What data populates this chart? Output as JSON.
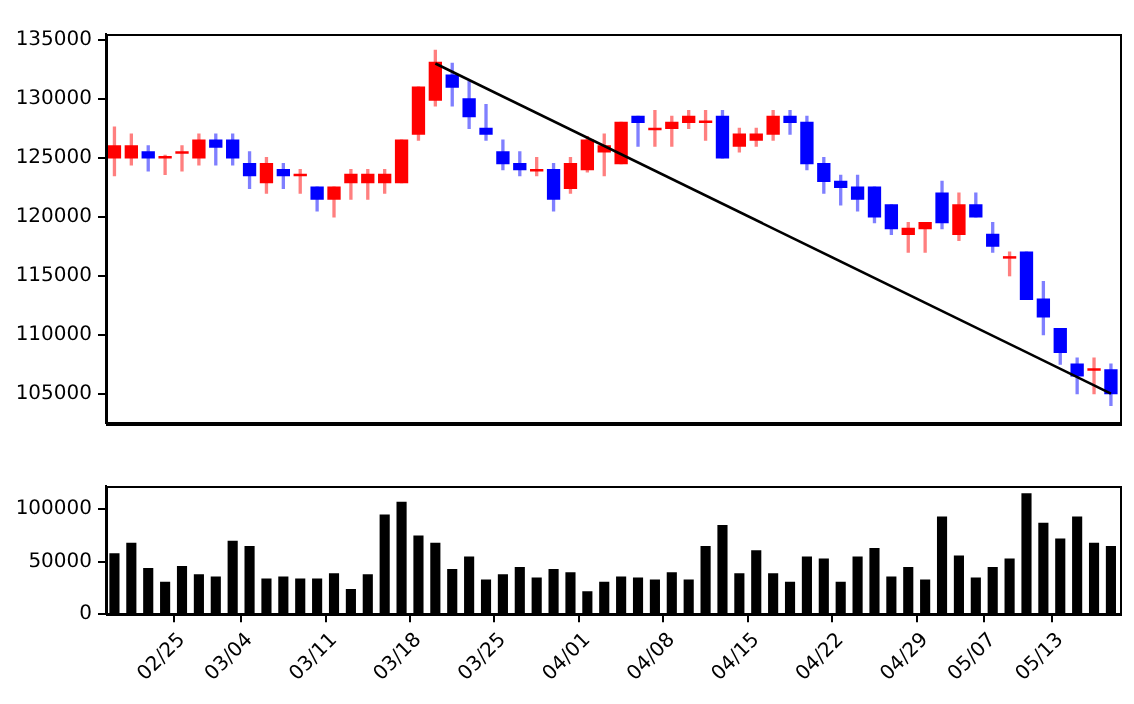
{
  "chart_data": [
    {
      "type": "candlestick",
      "categories": [
        null,
        null,
        null,
        null,
        null,
        null,
        null,
        null,
        null,
        null,
        null,
        null,
        null,
        null,
        null,
        null,
        null,
        null,
        null,
        null,
        null,
        null,
        null,
        null,
        null,
        null,
        null,
        null,
        null,
        null,
        null,
        null,
        null,
        null,
        null,
        null,
        null,
        null,
        null,
        null,
        null,
        null,
        null,
        null,
        null,
        null,
        null,
        null,
        null,
        null,
        null,
        null,
        null,
        null,
        null,
        null,
        null,
        null,
        null,
        null
      ],
      "ohlc": [
        [
          125000,
          127600,
          123500,
          126000
        ],
        [
          125000,
          127000,
          124400,
          126000
        ],
        [
          125500,
          126000,
          123900,
          125000
        ],
        [
          125000,
          125200,
          123600,
          125100
        ],
        [
          125400,
          126000,
          123900,
          125500
        ],
        [
          125000,
          127000,
          124400,
          126500
        ],
        [
          126500,
          127000,
          124400,
          125900
        ],
        [
          126500,
          127000,
          124400,
          125000
        ],
        [
          124500,
          125500,
          122400,
          123500
        ],
        [
          122900,
          125000,
          122000,
          124500
        ],
        [
          124000,
          124500,
          122400,
          123500
        ],
        [
          123500,
          124000,
          122000,
          123600
        ],
        [
          122500,
          122500,
          120500,
          121500
        ],
        [
          121500,
          122500,
          120000,
          122500
        ],
        [
          122900,
          124000,
          121500,
          123600
        ],
        [
          122900,
          124000,
          121500,
          123600
        ],
        [
          122900,
          124000,
          122000,
          123600
        ],
        [
          122900,
          126500,
          122900,
          126500
        ],
        [
          127000,
          131000,
          126500,
          131000
        ],
        [
          129900,
          134100,
          129400,
          133100
        ],
        [
          132000,
          133000,
          129400,
          131000
        ],
        [
          130000,
          131500,
          127500,
          128500
        ],
        [
          127500,
          129500,
          126500,
          127000
        ],
        [
          125500,
          126500,
          124000,
          124500
        ],
        [
          124500,
          125500,
          123500,
          124000
        ],
        [
          123900,
          125000,
          123500,
          124000
        ],
        [
          124000,
          124500,
          120500,
          121500
        ],
        [
          122400,
          125000,
          122000,
          124500
        ],
        [
          124000,
          126800,
          123800,
          126500
        ],
        [
          125500,
          127000,
          123500,
          126000
        ],
        [
          124500,
          128000,
          124500,
          128000
        ],
        [
          128500,
          128500,
          126000,
          128000
        ],
        [
          127400,
          129000,
          126000,
          127500
        ],
        [
          127500,
          128500,
          126000,
          128000
        ],
        [
          128000,
          129000,
          127500,
          128500
        ],
        [
          128000,
          129000,
          126500,
          128100
        ],
        [
          128500,
          129000,
          125000,
          125000
        ],
        [
          126000,
          127500,
          125500,
          127000
        ],
        [
          126500,
          127500,
          126000,
          127000
        ],
        [
          127000,
          129000,
          126500,
          128500
        ],
        [
          128500,
          129000,
          127000,
          128000
        ],
        [
          128000,
          128500,
          124000,
          124500
        ],
        [
          124500,
          125000,
          122000,
          123000
        ],
        [
          123000,
          123500,
          121000,
          122500
        ],
        [
          122500,
          123500,
          120500,
          121500
        ],
        [
          122500,
          122500,
          119500,
          120000
        ],
        [
          121000,
          121000,
          118500,
          119000
        ],
        [
          118500,
          119500,
          117000,
          119000
        ],
        [
          119000,
          119500,
          117000,
          119500
        ],
        [
          122000,
          123000,
          119000,
          119500
        ],
        [
          118500,
          122000,
          118000,
          121000
        ],
        [
          121000,
          122000,
          120000,
          120000
        ],
        [
          118500,
          119500,
          117000,
          117500
        ],
        [
          116500,
          117000,
          115000,
          116600
        ],
        [
          117000,
          117000,
          113000,
          113000
        ],
        [
          113000,
          114500,
          110000,
          111500
        ],
        [
          110500,
          110500,
          107500,
          108500
        ],
        [
          107500,
          108000,
          105000,
          106500
        ],
        [
          107000,
          108000,
          105000,
          107100
        ],
        [
          107000,
          107500,
          104000,
          105000
        ]
      ],
      "colors": [
        "#ff0000",
        "#ff0000",
        "#0000ff",
        "#ff0000",
        "#ff0000",
        "#ff0000",
        "#0000ff",
        "#0000ff",
        "#0000ff",
        "#ff0000",
        "#0000ff",
        "#ff0000",
        "#0000ff",
        "#ff0000",
        "#ff0000",
        "#ff0000",
        "#ff0000",
        "#ff0000",
        "#ff0000",
        "#ff0000",
        "#0000ff",
        "#0000ff",
        "#0000ff",
        "#0000ff",
        "#0000ff",
        "#ff0000",
        "#0000ff",
        "#ff0000",
        "#ff0000",
        "#ff0000",
        "#ff0000",
        "#0000ff",
        "#ff0000",
        "#ff0000",
        "#ff0000",
        "#ff0000",
        "#0000ff",
        "#ff0000",
        "#ff0000",
        "#ff0000",
        "#0000ff",
        "#0000ff",
        "#0000ff",
        "#0000ff",
        "#0000ff",
        "#0000ff",
        "#0000ff",
        "#ff0000",
        "#ff0000",
        "#0000ff",
        "#ff0000",
        "#0000ff",
        "#0000ff",
        "#ff0000",
        "#0000ff",
        "#0000ff",
        "#0000ff",
        "#0000ff",
        "#ff0000",
        "#0000ff"
      ],
      "series": [
        {
          "type": "line",
          "color": "#000000",
          "values": [
            null,
            null,
            null,
            null,
            null,
            null,
            null,
            null,
            null,
            null,
            null,
            null,
            null,
            null,
            null,
            null,
            null,
            null,
            null,
            133000,
            null,
            null,
            null,
            null,
            null,
            null,
            null,
            null,
            null,
            null,
            null,
            null,
            null,
            null,
            null,
            null,
            null,
            null,
            null,
            null,
            null,
            null,
            null,
            null,
            null,
            null,
            null,
            null,
            null,
            null,
            null,
            null,
            null,
            null,
            null,
            null,
            null,
            null,
            null,
            105000
          ]
        }
      ],
      "ylim": [
        102500,
        135500
      ],
      "yticks": [
        105000,
        110000,
        115000,
        120000,
        125000,
        130000,
        135000
      ]
    },
    {
      "type": "bar",
      "categories": [
        null,
        null,
        null,
        null,
        "02/25",
        null,
        null,
        null,
        "03/04",
        null,
        null,
        null,
        null,
        "03/11",
        null,
        null,
        null,
        null,
        "03/18",
        null,
        null,
        null,
        null,
        "03/25",
        null,
        null,
        null,
        null,
        "04/01",
        null,
        null,
        null,
        null,
        "04/08",
        null,
        null,
        null,
        null,
        "04/15",
        null,
        null,
        null,
        null,
        "04/22",
        null,
        null,
        null,
        null,
        "04/29",
        null,
        null,
        null,
        "05/07",
        null,
        null,
        null,
        "05/13",
        null,
        null,
        null
      ],
      "values": [
        58000,
        68000,
        44000,
        31000,
        46000,
        38000,
        36000,
        70000,
        65000,
        34000,
        36000,
        34000,
        34000,
        39000,
        24000,
        38000,
        95000,
        107000,
        75000,
        68000,
        43000,
        55000,
        33000,
        38000,
        45000,
        35000,
        43000,
        40000,
        22000,
        31000,
        36000,
        35000,
        33000,
        40000,
        33000,
        65000,
        85000,
        39000,
        61000,
        39000,
        31000,
        55000,
        53000,
        31000,
        55000,
        63000,
        36000,
        45000,
        33000,
        93000,
        56000,
        35000,
        45000,
        53000,
        115000,
        87000,
        72000,
        93000,
        68000,
        65000
      ],
      "color": "#000000",
      "ylim": [
        0,
        122000
      ],
      "yticks": [
        0,
        50000,
        100000
      ]
    }
  ]
}
